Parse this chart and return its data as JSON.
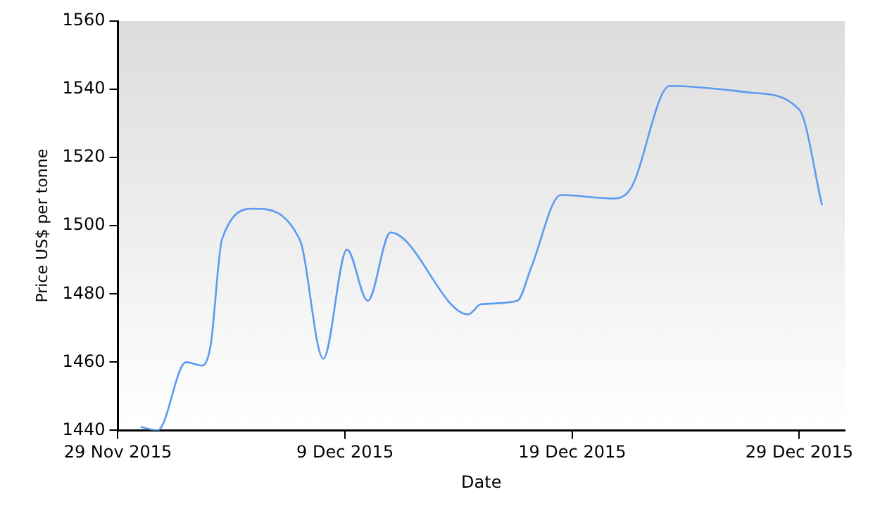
{
  "chart_data": {
    "type": "line",
    "xlabel": "Date",
    "ylabel": "Price US$ per tonne",
    "x": [
      "2015-11-30",
      "2015-11-30T18:00",
      "2015-12-02",
      "2015-12-02T17:00",
      "2015-12-03T02:00",
      "2015-12-03T14:00",
      "2015-12-05",
      "2015-12-07",
      "2015-12-08T01:00",
      "2015-12-09T02:00",
      "2015-12-10",
      "2015-12-11",
      "2015-12-14T10:00",
      "2015-12-15",
      "2015-12-16T14:00",
      "2015-12-17T05:00",
      "2015-12-18T12:00",
      "2015-12-20T19:00",
      "2015-12-21T14:00",
      "2015-12-23T07:00",
      "2015-12-26T22:00",
      "2015-12-29",
      "2015-12-30"
    ],
    "series": [
      {
        "color": "#5b9bf0",
        "values": [
          1441,
          1440,
          1460,
          1459,
          1465,
          1496,
          1505,
          1496,
          1461,
          1493,
          1478,
          1498,
          1474,
          1477,
          1478,
          1488,
          1509,
          1508,
          1511,
          1541,
          1539,
          1534,
          1506
        ]
      }
    ],
    "xlim": [
      "2015-11-29",
      "2015-12-31"
    ],
    "xticks": [
      {
        "value": "2015-11-29",
        "label": "29 Nov 2015"
      },
      {
        "value": "2015-12-09",
        "label": "9 Dec 2015"
      },
      {
        "value": "2015-12-19",
        "label": "19 Dec 2015"
      },
      {
        "value": "2015-12-29",
        "label": "29 Dec 2015"
      }
    ],
    "ylim": [
      1440,
      1560
    ],
    "yticks": [
      1440,
      1460,
      1480,
      1500,
      1520,
      1540,
      1560
    ],
    "grid": false,
    "legend": false,
    "marker": "none",
    "line_style": "solid"
  }
}
